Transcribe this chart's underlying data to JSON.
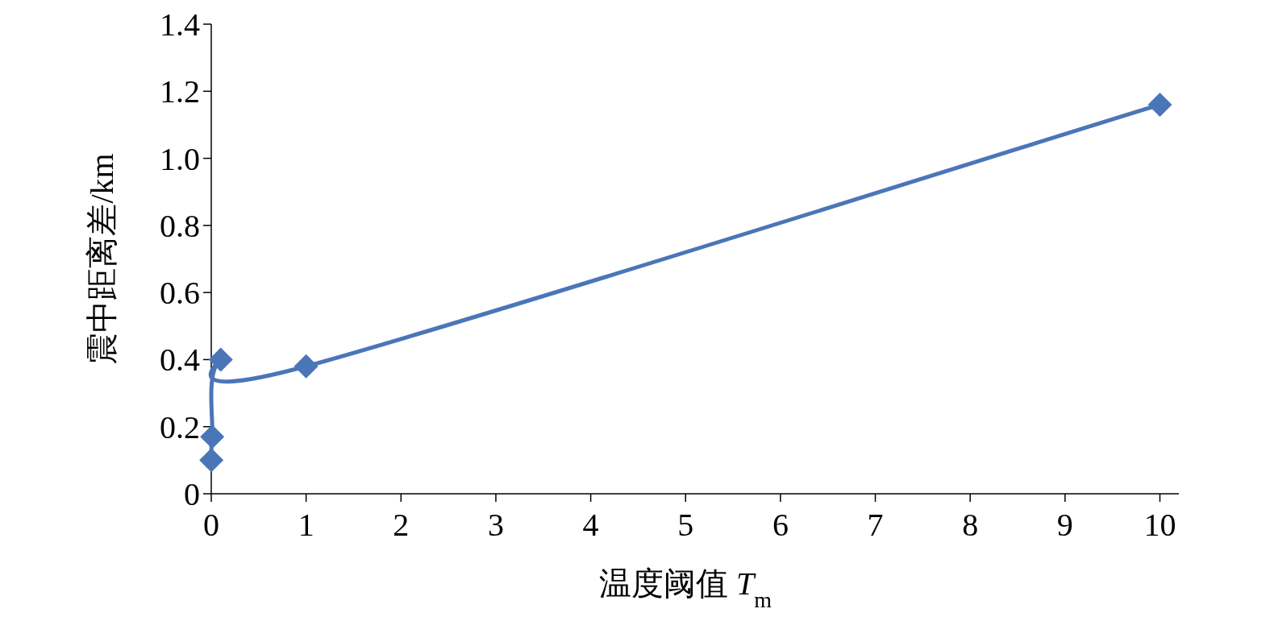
{
  "chart_data": {
    "type": "line",
    "xlabel": "温度阈值 *T*$_{m}$",
    "ylabel": "震中距离差/km",
    "x": [
      0.001,
      0.01,
      0.1,
      1,
      10
    ],
    "series": [
      {
        "color": "#4a76b8",
        "values": [
          0.1,
          0.17,
          0.4,
          0.38,
          1.16
        ]
      }
    ],
    "marker": "diamond",
    "line_style": "solid",
    "grid": false,
    "xlim": [
      0,
      10.2
    ],
    "xticks": [
      0,
      1,
      2,
      3,
      4,
      5,
      6,
      7,
      8,
      9,
      10
    ],
    "ylim": [
      0,
      1.4
    ],
    "yticks": [
      0,
      0.2,
      0.4,
      0.6,
      0.8,
      {
        "value": 1,
        "label": "1.0"
      },
      1.2,
      1.4
    ]
  }
}
